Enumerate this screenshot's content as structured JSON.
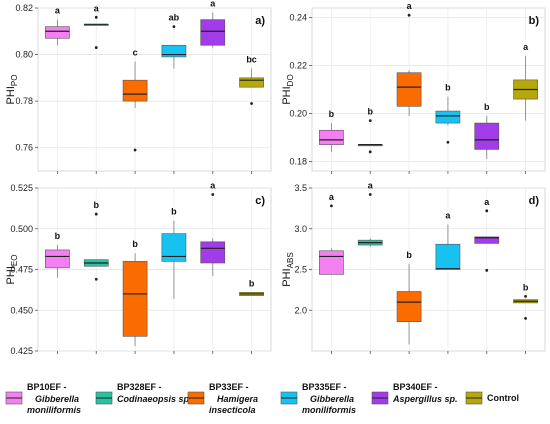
{
  "chart_data": [
    {
      "type": "box",
      "panel_label": "a)",
      "ylabel": {
        "main": "PHI",
        "sub": "PO"
      },
      "ylim": [
        0.75,
        0.82
      ],
      "yticks": [
        0.76,
        0.78,
        0.8,
        0.82
      ],
      "ytick_labels": [
        "0.76",
        "0.78",
        "0.80",
        "0.82"
      ],
      "grid": true,
      "boxes": [
        {
          "group": "BP10EF",
          "min": 0.804,
          "q1": 0.807,
          "median": 0.81,
          "q3": 0.812,
          "max": 0.815,
          "outliers": [],
          "letter": "a"
        },
        {
          "group": "BP328EF",
          "min": 0.813,
          "q1": 0.813,
          "median": 0.813,
          "q3": 0.813,
          "max": 0.813,
          "outliers": [
            0.816,
            0.803
          ],
          "letter": "a"
        },
        {
          "group": "BP33EF",
          "min": 0.777,
          "q1": 0.78,
          "median": 0.783,
          "q3": 0.789,
          "max": 0.797,
          "outliers": [
            0.759
          ],
          "letter": "c"
        },
        {
          "group": "BP335EF",
          "min": 0.794,
          "q1": 0.799,
          "median": 0.8,
          "q3": 0.804,
          "max": 0.804,
          "outliers": [
            0.812
          ],
          "letter": "ab"
        },
        {
          "group": "BP340EF",
          "min": 0.803,
          "q1": 0.804,
          "median": 0.81,
          "q3": 0.815,
          "max": 0.818,
          "outliers": [],
          "letter": "a"
        },
        {
          "group": "Control",
          "min": 0.786,
          "q1": 0.786,
          "median": 0.789,
          "q3": 0.79,
          "max": 0.794,
          "outliers": [
            0.779
          ],
          "letter": "bc"
        }
      ]
    },
    {
      "type": "box",
      "panel_label": "b)",
      "ylabel": {
        "main": "PHI",
        "sub": "DO"
      },
      "ylim": [
        0.176,
        0.244
      ],
      "yticks": [
        0.18,
        0.2,
        0.22,
        0.24
      ],
      "ytick_labels": [
        "0.18",
        "0.20",
        "0.22",
        "0.24"
      ],
      "grid": true,
      "boxes": [
        {
          "group": "BP10EF",
          "min": 0.184,
          "q1": 0.187,
          "median": 0.189,
          "q3": 0.193,
          "max": 0.196,
          "outliers": [],
          "letter": "b"
        },
        {
          "group": "BP328EF",
          "min": 0.187,
          "q1": 0.187,
          "median": 0.187,
          "q3": 0.187,
          "max": 0.187,
          "outliers": [
            0.197,
            0.184
          ],
          "letter": "b"
        },
        {
          "group": "BP33EF",
          "min": 0.199,
          "q1": 0.203,
          "median": 0.211,
          "q3": 0.217,
          "max": 0.218,
          "outliers": [
            0.241
          ],
          "letter": "a"
        },
        {
          "group": "BP335EF",
          "min": 0.195,
          "q1": 0.196,
          "median": 0.199,
          "q3": 0.201,
          "max": 0.207,
          "outliers": [
            0.188
          ],
          "letter": "b"
        },
        {
          "group": "BP340EF",
          "min": 0.181,
          "q1": 0.185,
          "median": 0.189,
          "q3": 0.196,
          "max": 0.199,
          "outliers": [],
          "letter": "b"
        },
        {
          "group": "Control",
          "min": 0.197,
          "q1": 0.206,
          "median": 0.21,
          "q3": 0.214,
          "max": 0.224,
          "outliers": [],
          "letter": "a"
        }
      ]
    },
    {
      "type": "box",
      "panel_label": "c)",
      "ylabel": {
        "main": "PHI",
        "sub": "EO"
      },
      "ylim": [
        0.425,
        0.525
      ],
      "yticks": [
        0.425,
        0.45,
        0.475,
        0.5,
        0.525
      ],
      "ytick_labels": [
        "0.425",
        "0.450",
        "0.475",
        "0.500",
        "0.525"
      ],
      "grid": true,
      "boxes": [
        {
          "group": "BP10EF",
          "min": 0.47,
          "q1": 0.476,
          "median": 0.483,
          "q3": 0.487,
          "max": 0.49,
          "outliers": [],
          "letter": "b"
        },
        {
          "group": "BP328EF",
          "min": 0.477,
          "q1": 0.477,
          "median": 0.479,
          "q3": 0.481,
          "max": 0.481,
          "outliers": [
            0.509,
            0.469
          ],
          "letter": "b"
        },
        {
          "group": "BP33EF",
          "min": 0.428,
          "q1": 0.434,
          "median": 0.46,
          "q3": 0.48,
          "max": 0.485,
          "outliers": [],
          "letter": "b"
        },
        {
          "group": "BP335EF",
          "min": 0.457,
          "q1": 0.48,
          "median": 0.483,
          "q3": 0.497,
          "max": 0.505,
          "outliers": [],
          "letter": "b"
        },
        {
          "group": "BP340EF",
          "min": 0.471,
          "q1": 0.479,
          "median": 0.488,
          "q3": 0.492,
          "max": 0.494,
          "outliers": [
            0.521
          ],
          "letter": "a"
        },
        {
          "group": "Control",
          "min": 0.459,
          "q1": 0.459,
          "median": 0.46,
          "q3": 0.461,
          "max": 0.461,
          "outliers": [],
          "letter": "b"
        }
      ]
    },
    {
      "type": "box",
      "panel_label": "d)",
      "ylabel": {
        "main": "PHI",
        "sub": "ABS"
      },
      "ylim": [
        1.5,
        3.5
      ],
      "yticks": [
        2.0,
        2.5,
        3.0,
        3.5
      ],
      "ytick_labels": [
        "2.0",
        "2.5",
        "3.0",
        "3.5"
      ],
      "grid": true,
      "boxes": [
        {
          "group": "BP10EF",
          "min": 2.44,
          "q1": 2.44,
          "median": 2.66,
          "q3": 2.73,
          "max": 2.76,
          "outliers": [
            3.28
          ],
          "letter": "a"
        },
        {
          "group": "BP328EF",
          "min": 2.78,
          "q1": 2.8,
          "median": 2.83,
          "q3": 2.86,
          "max": 2.88,
          "outliers": [
            3.42
          ],
          "letter": "a"
        },
        {
          "group": "BP33EF",
          "min": 1.58,
          "q1": 1.86,
          "median": 2.1,
          "q3": 2.23,
          "max": 2.57,
          "outliers": [],
          "letter": "b"
        },
        {
          "group": "BP335EF",
          "min": 2.5,
          "q1": 2.5,
          "median": 2.51,
          "q3": 2.81,
          "max": 3.05,
          "outliers": [],
          "letter": "a"
        },
        {
          "group": "BP340EF",
          "min": 2.82,
          "q1": 2.82,
          "median": 2.89,
          "q3": 2.9,
          "max": 2.9,
          "outliers": [
            3.22,
            2.49
          ],
          "letter": "a"
        },
        {
          "group": "Control",
          "min": 2.09,
          "q1": 2.09,
          "median": 2.11,
          "q3": 2.13,
          "max": 2.13,
          "outliers": [
            2.17,
            1.9
          ],
          "letter": "b"
        }
      ]
    }
  ],
  "series": [
    {
      "id": "BP10EF",
      "code": "BP10EF -",
      "species": "Gibberella moniliformis",
      "species_line1": "Gibberella",
      "species_line2": "moniliformis",
      "italic_rest": "",
      "color": "#f47ff0",
      "median_color": "#222222"
    },
    {
      "id": "BP328EF",
      "code": "BP328EF -",
      "species": "Codinaeopsis sp.",
      "species_line1": "Codinaeopsis sp.",
      "species_line2": "",
      "color": "#26c3a2",
      "median_color": "#222222"
    },
    {
      "id": "BP33EF",
      "code": "BP33EF -",
      "species": "Hamigera insecticola",
      "species_line1": "Hamigera",
      "species_line2": "insecticola",
      "color": "#fa6b00",
      "median_color": "#222222"
    },
    {
      "id": "BP335EF",
      "code": "BP335EF -",
      "species": "Gibberella moniliformis",
      "species_line1": "Gibberella",
      "species_line2": "moniliformis",
      "color": "#18c2f0",
      "median_color": "#222222"
    },
    {
      "id": "BP340EF",
      "code": "BP340EF -",
      "species": "Aspergillus sp.",
      "species_line1": "Aspergillus sp.",
      "species_line2": "",
      "color": "#a23be8",
      "median_color": "#222222"
    },
    {
      "id": "Control",
      "code": "Control",
      "species": "",
      "species_line1": "",
      "species_line2": "",
      "color": "#b5a70c",
      "median_color": "#222222"
    }
  ],
  "legend": {
    "placement": "bottom",
    "entries": [
      {
        "line1": "BP10EF -",
        "line2": "Gibberella",
        "line3": "moniliformis"
      },
      {
        "line1": "BP328EF -",
        "line2": "Codinaeopsis sp.",
        "line3": ""
      },
      {
        "line1": "BP33EF -",
        "line2": "Hamigera",
        "line3": "insecticola"
      },
      {
        "line1": "BP335EF -",
        "line2": "Gibberella",
        "line3": "moniliformis"
      },
      {
        "line1": "BP340EF -",
        "line2": "Aspergillus sp.",
        "line3": ""
      },
      {
        "line1": "Control",
        "line2": "",
        "line3": ""
      }
    ]
  }
}
